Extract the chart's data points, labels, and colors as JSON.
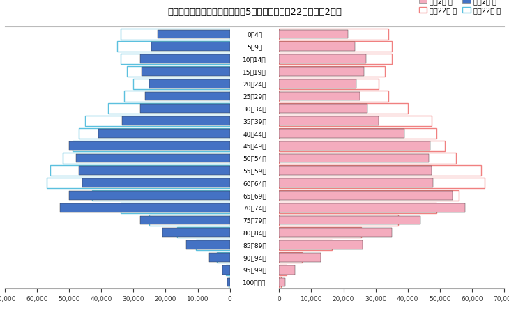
{
  "title": "青森県の人口ピラミッド（年齢5歳ごと）～平成22年・令和2年～",
  "age_groups": [
    "100歳以上",
    "95～99歳",
    "90～94歳",
    "85～89歳",
    "80～84歳",
    "75～79歳",
    "70～74歳",
    "65～69歳",
    "60～64歳",
    "55～59歳",
    "50～54歳",
    "45～49歳",
    "40～44歳",
    "35～39歳",
    "30～34歳",
    "25～29歳",
    "20～24歳",
    "15～19歳",
    "10～14歳",
    "5～9歳",
    "0～4歳"
  ],
  "reiwa2_male": [
    700,
    2200,
    6500,
    13500,
    21000,
    28000,
    53000,
    50000,
    46000,
    47000,
    48000,
    50000,
    41000,
    33500,
    28000,
    26500,
    25000,
    27500,
    28000,
    24500,
    22500
  ],
  "reiwa2_female": [
    1800,
    4800,
    13000,
    26000,
    35000,
    44000,
    58000,
    54000,
    48000,
    47500,
    46500,
    47000,
    39000,
    31000,
    27500,
    25000,
    24000,
    26500,
    27000,
    23500,
    21500
  ],
  "heisei22_male": [
    300,
    1200,
    4000,
    10500,
    16500,
    25000,
    34000,
    43000,
    57000,
    56000,
    52000,
    49000,
    47000,
    45000,
    38000,
    33000,
    30000,
    32000,
    34000,
    35000,
    34000
  ],
  "heisei22_female": [
    600,
    2200,
    7000,
    16500,
    25500,
    37000,
    49000,
    56000,
    64000,
    63000,
    55000,
    51500,
    49000,
    47500,
    40000,
    34000,
    31000,
    33000,
    35000,
    35000,
    34000
  ],
  "reiwa2_male_color": "#4472C4",
  "reiwa2_female_color": "#F4ACBE",
  "heisei22_male_edge": "#5BC0DE",
  "heisei22_female_edge": "#F08080",
  "x_max": 70000,
  "legend_reiwa2_female": "令和2年 女",
  "legend_heisei22_female": "平成22年 女",
  "legend_reiwa2_male": "令和2年 男",
  "legend_heisei22_male": "平成22年 男"
}
